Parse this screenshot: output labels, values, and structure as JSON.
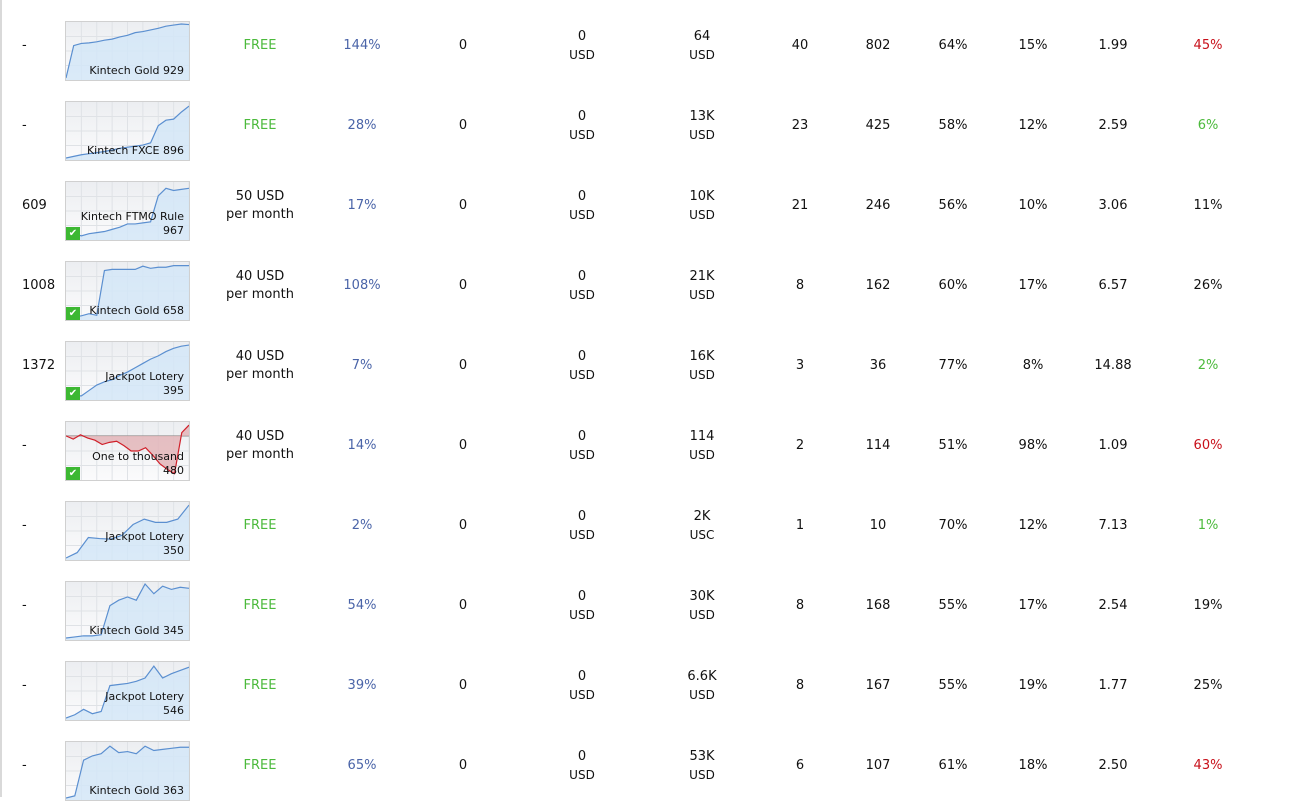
{
  "colors": {
    "free": "#4cba3c",
    "percent_blue": "#4a64a8",
    "red": "#c8101a",
    "green": "#4cba3c",
    "chart_line": "#5b8fd0",
    "chart_fill": "#d3e6f7",
    "loss_line": "#d0202a",
    "loss_fill": "#e3b5b8"
  },
  "rows": [
    {
      "rank": "-",
      "name": [
        "Kintech Gold 929"
      ],
      "verified": false,
      "negative": false,
      "spark": [
        0,
        60,
        64,
        65,
        67,
        70,
        72,
        76,
        79,
        84,
        86,
        89,
        92,
        96,
        98,
        100,
        99
      ],
      "price": "FREE",
      "price_sub": "",
      "pct": "144%",
      "v1": "0",
      "v2": "0",
      "v2u": "USD",
      "v3": "64",
      "v3u": "USD",
      "v4": "40",
      "v5": "802",
      "v6": "64%",
      "v7": "15%",
      "v8": "1.99",
      "v9": "45%",
      "v9c": "red"
    },
    {
      "rank": "-",
      "name": [
        "Kintech FXCE 896"
      ],
      "verified": false,
      "negative": false,
      "spark": [
        0,
        3,
        6,
        8,
        10,
        12,
        15,
        18,
        20,
        22,
        24,
        28,
        60,
        70,
        72,
        85,
        96
      ],
      "price": "FREE",
      "price_sub": "",
      "pct": "28%",
      "v1": "0",
      "v2": "0",
      "v2u": "USD",
      "v3": "13K",
      "v3u": "USD",
      "v4": "23",
      "v5": "425",
      "v6": "58%",
      "v7": "12%",
      "v8": "2.59",
      "v9": "6%",
      "v9c": "green"
    },
    {
      "rank": "609",
      "name": [
        "Kintech FTMO Rule",
        "967"
      ],
      "verified": true,
      "negative": false,
      "spark": [
        0,
        8,
        4,
        8,
        10,
        12,
        16,
        20,
        26,
        26,
        28,
        30,
        78,
        92,
        88,
        90,
        92
      ],
      "price": "50 USD",
      "price_sub": "per month",
      "pct": "17%",
      "v1": "0",
      "v2": "0",
      "v2u": "USD",
      "v3": "10K",
      "v3u": "USD",
      "v4": "21",
      "v5": "246",
      "v6": "56%",
      "v7": "10%",
      "v8": "3.06",
      "v9": "11%",
      "v9c": "black"
    },
    {
      "rank": "1008",
      "name": [
        "Kintech Gold 658"
      ],
      "verified": true,
      "negative": false,
      "spark": [
        0,
        2,
        4,
        8,
        5,
        88,
        90,
        90,
        90,
        90,
        96,
        92,
        94,
        94,
        97,
        97,
        97
      ],
      "price": "40 USD",
      "price_sub": "per month",
      "pct": "108%",
      "v1": "0",
      "v2": "0",
      "v2u": "USD",
      "v3": "21K",
      "v3u": "USD",
      "v4": "8",
      "v5": "162",
      "v6": "60%",
      "v7": "17%",
      "v8": "6.57",
      "v9": "26%",
      "v9c": "black"
    },
    {
      "rank": "1372",
      "name": [
        "Jackpot Lotery",
        "395"
      ],
      "verified": true,
      "negative": false,
      "spark": [
        0,
        4,
        4,
        14,
        24,
        30,
        34,
        42,
        48,
        56,
        64,
        72,
        78,
        86,
        92,
        96,
        98
      ],
      "price": "40 USD",
      "price_sub": "per month",
      "pct": "7%",
      "v1": "0",
      "v2": "0",
      "v2u": "USD",
      "v3": "16K",
      "v3u": "USD",
      "v4": "3",
      "v5": "36",
      "v6": "77%",
      "v7": "8%",
      "v8": "14.88",
      "v9": "2%",
      "v9c": "green"
    },
    {
      "rank": "-",
      "name": [
        "One to thousand",
        "480"
      ],
      "verified": true,
      "negative": true,
      "spark": [
        78,
        72,
        80,
        74,
        70,
        62,
        66,
        68,
        60,
        50,
        50,
        56,
        42,
        26,
        16,
        8,
        84,
        98
      ],
      "price": "40 USD",
      "price_sub": "per month",
      "pct": "14%",
      "v1": "0",
      "v2": "0",
      "v2u": "USD",
      "v3": "114",
      "v3u": "USD",
      "v4": "2",
      "v5": "114",
      "v6": "51%",
      "v7": "98%",
      "v8": "1.09",
      "v9": "60%",
      "v9c": "red"
    },
    {
      "rank": "-",
      "name": [
        "Jackpot Lotery",
        "350"
      ],
      "verified": false,
      "negative": false,
      "spark": [
        0,
        10,
        38,
        36,
        35,
        42,
        62,
        72,
        66,
        66,
        72,
        98
      ],
      "price": "FREE",
      "price_sub": "",
      "pct": "2%",
      "v1": "0",
      "v2": "0",
      "v2u": "USD",
      "v3": "2K",
      "v3u": "USC",
      "v4": "1",
      "v5": "10",
      "v6": "70%",
      "v7": "12%",
      "v8": "7.13",
      "v9": "1%",
      "v9c": "green"
    },
    {
      "rank": "-",
      "name": [
        "Kintech Gold 345"
      ],
      "verified": false,
      "negative": false,
      "spark": [
        0,
        2,
        4,
        4,
        6,
        60,
        70,
        76,
        70,
        100,
        82,
        96,
        90,
        94,
        92
      ],
      "price": "FREE",
      "price_sub": "",
      "pct": "54%",
      "v1": "0",
      "v2": "0",
      "v2u": "USD",
      "v3": "30K",
      "v3u": "USD",
      "v4": "8",
      "v5": "168",
      "v6": "55%",
      "v7": "17%",
      "v8": "2.54",
      "v9": "19%",
      "v9c": "black"
    },
    {
      "rank": "-",
      "name": [
        "Jackpot Lotery",
        "546"
      ],
      "verified": false,
      "negative": false,
      "spark": [
        0,
        6,
        16,
        8,
        12,
        60,
        62,
        64,
        68,
        74,
        96,
        74,
        82,
        88,
        94
      ],
      "price": "FREE",
      "price_sub": "",
      "pct": "39%",
      "v1": "0",
      "v2": "0",
      "v2u": "USD",
      "v3": "6.6K",
      "v3u": "USD",
      "v4": "8",
      "v5": "167",
      "v6": "55%",
      "v7": "19%",
      "v8": "1.77",
      "v9": "25%",
      "v9c": "black"
    },
    {
      "rank": "-",
      "name": [
        "Kintech Gold 363"
      ],
      "verified": false,
      "negative": false,
      "spark": [
        0,
        4,
        70,
        78,
        82,
        96,
        84,
        86,
        82,
        96,
        88,
        90,
        92,
        94,
        94
      ],
      "price": "FREE",
      "price_sub": "",
      "pct": "65%",
      "v1": "0",
      "v2": "0",
      "v2u": "USD",
      "v3": "53K",
      "v3u": "USD",
      "v4": "6",
      "v5": "107",
      "v6": "61%",
      "v7": "18%",
      "v8": "2.50",
      "v9": "43%",
      "v9c": "red"
    }
  ]
}
